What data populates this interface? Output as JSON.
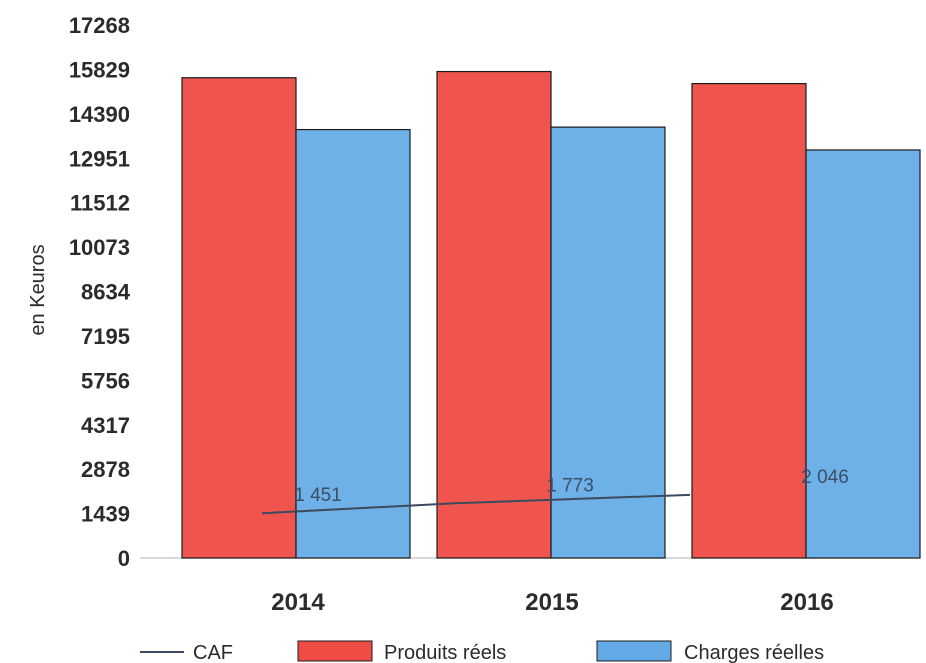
{
  "chart_data": {
    "type": "bar",
    "categories": [
      "2014",
      "2015",
      "2016"
    ],
    "series": [
      {
        "name": "Produits réels",
        "kind": "bar",
        "color": "#ee4c45",
        "values": [
          15560,
          15760,
          15370
        ]
      },
      {
        "name": "Charges réelles",
        "kind": "bar",
        "color": "#62a9e6",
        "values": [
          13880,
          13960,
          13220
        ]
      },
      {
        "name": "CAF",
        "kind": "line",
        "color": "#3b4a5c",
        "values": [
          1451,
          1773,
          2046
        ],
        "labels": [
          "1 451",
          "1 773",
          "2 046"
        ]
      }
    ],
    "yticks": [
      "17268",
      "15829",
      "14390",
      "12951",
      "11512",
      "10073",
      "8634",
      "7195",
      "5756",
      "4317",
      "2878",
      "1439",
      "0"
    ],
    "ylim": [
      0,
      17268
    ],
    "ylabel": "en Keuros",
    "xlabel": "",
    "legend": [
      {
        "label": "CAF",
        "kind": "line",
        "color": "#3b4a5c"
      },
      {
        "label": "Produits réels",
        "kind": "bar",
        "color": "#ee4c45"
      },
      {
        "label": "Charges réelles",
        "kind": "bar",
        "color": "#62a9e6"
      }
    ],
    "legend_position": "bottom"
  }
}
